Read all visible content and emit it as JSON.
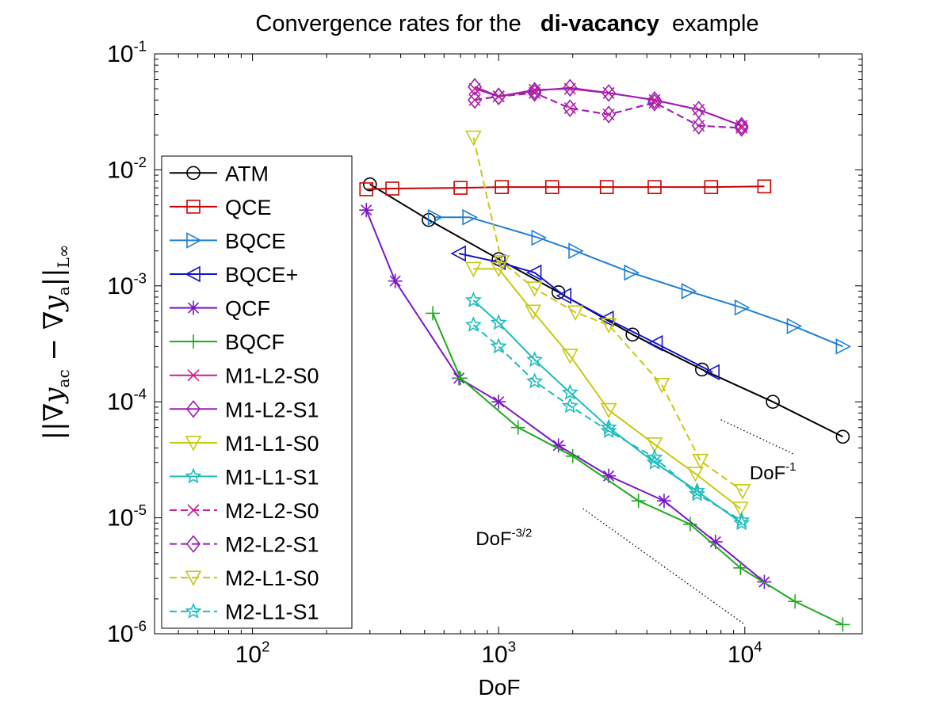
{
  "chart_data": {
    "type": "line",
    "title": {
      "prefix": "Convergence rates for the",
      "bold": "di-vacancy",
      "suffix": "example"
    },
    "xlabel": "DoF",
    "ylabel": {
      "text": "||∇y",
      "sub1": "ac",
      "middle": " − ∇y",
      "sub2": "a",
      "end": "||",
      "sub3": "L∞"
    },
    "xscale": "log",
    "yscale": "log",
    "xlim": [
      40,
      30000
    ],
    "ylim": [
      1e-06,
      0.1
    ],
    "xticks": [
      {
        "value": 100,
        "base": "10",
        "exp": "2"
      },
      {
        "value": 1000,
        "base": "10",
        "exp": "3"
      },
      {
        "value": 10000,
        "base": "10",
        "exp": "4"
      }
    ],
    "yticks": [
      {
        "value": 1e-06,
        "base": "10",
        "exp": "-6"
      },
      {
        "value": 1e-05,
        "base": "10",
        "exp": "-5"
      },
      {
        "value": 0.0001,
        "base": "10",
        "exp": "-4"
      },
      {
        "value": 0.001,
        "base": "10",
        "exp": "-3"
      },
      {
        "value": 0.01,
        "base": "10",
        "exp": "-2"
      },
      {
        "value": 0.1,
        "base": "10",
        "exp": "-1"
      }
    ],
    "legend_position": "left",
    "series": [
      {
        "name": "ATM",
        "color": "#000000",
        "marker": "circle",
        "dash": false,
        "x": [
          300,
          520,
          1000,
          1750,
          3500,
          6700,
          13000,
          25000
        ],
        "y": [
          0.0075,
          0.0037,
          0.0017,
          0.00088,
          0.00038,
          0.00019,
          0.0001,
          5e-05
        ]
      },
      {
        "name": "QCE",
        "color": "#cc0000",
        "marker": "square",
        "dash": false,
        "x": [
          290,
          370,
          700,
          1030,
          1650,
          2750,
          4300,
          7300,
          12000
        ],
        "y": [
          0.0068,
          0.0069,
          0.007,
          0.0071,
          0.0071,
          0.0071,
          0.0071,
          0.0071,
          0.0072
        ]
      },
      {
        "name": "BQCE",
        "color": "#1f7fd6",
        "marker": "triangle-right",
        "dash": false,
        "x": [
          550,
          760,
          1450,
          2050,
          3450,
          5900,
          9700,
          15800,
          25000
        ],
        "y": [
          0.0039,
          0.0039,
          0.0026,
          0.002,
          0.0013,
          0.0009,
          0.00065,
          0.00045,
          0.0003
        ]
      },
      {
        "name": "BQCE+",
        "color": "#1414c8",
        "marker": "triangle-left",
        "dash": false,
        "x": [
          690,
          1000,
          1400,
          1850,
          2750,
          4350,
          7400
        ],
        "y": [
          0.0019,
          0.0016,
          0.0013,
          0.00082,
          0.00052,
          0.00032,
          0.00018
        ]
      },
      {
        "name": "QCF",
        "color": "#7a17c8",
        "marker": "asterisk",
        "dash": false,
        "x": [
          290,
          380,
          690,
          1000,
          1750,
          2800,
          4700,
          7600,
          12000
        ],
        "y": [
          0.0045,
          0.0011,
          0.00016,
          0.0001,
          4.2e-05,
          2.3e-05,
          1.4e-05,
          6.2e-06,
          2.8e-06
        ]
      },
      {
        "name": "BQCF",
        "color": "#1faa1f",
        "marker": "plus",
        "dash": false,
        "x": [
          540,
          700,
          1200,
          2000,
          3700,
          6000,
          9600,
          16000,
          25000
        ],
        "y": [
          0.00058,
          0.00016,
          6e-05,
          3.4e-05,
          1.4e-05,
          8.8e-06,
          3.7e-06,
          1.9e-06,
          1.2e-06
        ]
      },
      {
        "name": "M1-L2-S0",
        "color": "#cc1f8f",
        "marker": "x",
        "dash": false,
        "x": [
          800,
          1000,
          1400,
          1950,
          2800,
          4300,
          6500,
          9700
        ],
        "y": [
          0.05,
          0.043,
          0.049,
          0.05,
          0.046,
          0.04,
          0.033,
          0.024
        ]
      },
      {
        "name": "M1-L2-S1",
        "color": "#9c1fb5",
        "marker": "diamond",
        "dash": false,
        "x": [
          800,
          1000,
          1400,
          1950,
          2800,
          4300,
          6500,
          9700
        ],
        "y": [
          0.052,
          0.043,
          0.048,
          0.051,
          0.046,
          0.04,
          0.033,
          0.024
        ]
      },
      {
        "name": "M1-L1-S0",
        "color": "#c8c814",
        "marker": "triangle-down",
        "dash": false,
        "x": [
          790,
          1000,
          1380,
          1950,
          2800,
          4300,
          6300,
          9600
        ],
        "y": [
          0.0014,
          0.0014,
          0.0006,
          0.00025,
          8.5e-05,
          4.3e-05,
          2.4e-05,
          1.2e-05
        ]
      },
      {
        "name": "M1-L1-S1",
        "color": "#1fbcbc",
        "marker": "star",
        "dash": false,
        "x": [
          790,
          1000,
          1400,
          1950,
          2800,
          4300,
          6400,
          9700
        ],
        "y": [
          0.00075,
          0.00048,
          0.00023,
          0.00012,
          6e-05,
          3e-05,
          1.7e-05,
          9e-06
        ]
      },
      {
        "name": "M2-L2-S0",
        "color": "#cc1f8f",
        "marker": "x",
        "dash": true,
        "x": [
          800,
          1000,
          1400,
          1950,
          2800,
          4300,
          6500,
          9700
        ],
        "y": [
          0.04,
          0.043,
          0.046,
          0.034,
          0.03,
          0.038,
          0.024,
          0.023
        ]
      },
      {
        "name": "M2-L2-S1",
        "color": "#9c1fb5",
        "marker": "diamond",
        "dash": true,
        "x": [
          800,
          1000,
          1400,
          1950,
          2800,
          4300,
          6500,
          9700
        ],
        "y": [
          0.04,
          0.043,
          0.046,
          0.034,
          0.03,
          0.038,
          0.024,
          0.023
        ]
      },
      {
        "name": "M2-L1-S0",
        "color": "#c8c814",
        "marker": "triangle-down",
        "dash": true,
        "x": [
          790,
          1030,
          1400,
          2050,
          2800,
          4600,
          6600,
          9800
        ],
        "y": [
          0.019,
          0.0016,
          0.00095,
          0.00059,
          0.00046,
          0.00014,
          3.1e-05,
          1.7e-05
        ]
      },
      {
        "name": "M2-L1-S1",
        "color": "#1fbcbc",
        "marker": "star",
        "dash": true,
        "x": [
          790,
          1000,
          1400,
          1950,
          2800,
          4300,
          6400,
          9700
        ],
        "y": [
          0.00046,
          0.0003,
          0.00015,
          9.2e-05,
          5.6e-05,
          3.3e-05,
          1.6e-05,
          9.5e-06
        ]
      }
    ],
    "annotations": [
      {
        "name": "dof-inverse",
        "base": "DoF",
        "exp": "-1",
        "x": 13000,
        "y": 2.15e-05
      },
      {
        "name": "dof-three-halves",
        "base": "DoF",
        "exp": "-3/2",
        "x": 1050,
        "y": 5.8e-06
      }
    ],
    "reference_lines": [
      {
        "name": "ref-slope-1",
        "x": [
          8000,
          16000
        ],
        "y": [
          7e-05,
          3.5e-05
        ]
      },
      {
        "name": "ref-slope-3-2",
        "x": [
          2200,
          10000
        ],
        "y": [
          1.2e-05,
          1.2e-06
        ]
      }
    ]
  }
}
